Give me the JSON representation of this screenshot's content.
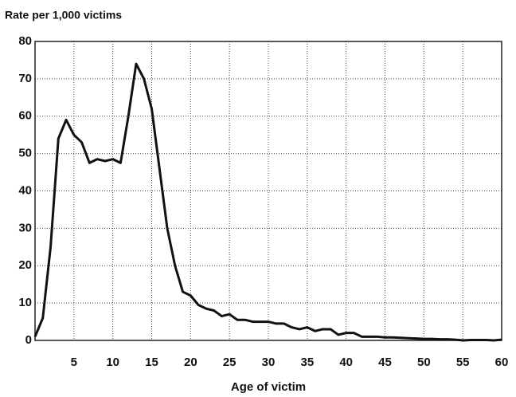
{
  "chart_data": {
    "type": "line",
    "y_label": "Rate per 1,000 victims",
    "x_label": "Age of victim",
    "x": [
      0,
      1,
      2,
      3,
      4,
      5,
      6,
      7,
      8,
      9,
      10,
      11,
      12,
      13,
      14,
      15,
      16,
      17,
      18,
      19,
      20,
      21,
      22,
      23,
      24,
      25,
      26,
      27,
      28,
      29,
      30,
      31,
      32,
      33,
      34,
      35,
      36,
      37,
      38,
      39,
      40,
      41,
      42,
      43,
      44,
      45,
      46,
      47,
      48,
      49,
      50,
      51,
      52,
      53,
      54,
      55,
      56,
      57,
      58,
      59,
      60
    ],
    "series": [
      {
        "name": "Rate",
        "color": "#111111",
        "values": [
          1,
          6,
          25,
          54,
          59,
          55,
          53,
          47.5,
          48.5,
          48,
          48.5,
          47.5,
          60,
          74,
          70,
          62,
          46,
          30,
          20,
          13,
          12,
          9.5,
          8.5,
          8,
          6.5,
          7,
          5.5,
          5.5,
          5,
          5,
          5,
          4.5,
          4.5,
          3.5,
          3,
          3.5,
          2.5,
          3,
          3,
          1.5,
          2,
          2,
          1,
          1,
          1,
          0.8,
          0.8,
          0.7,
          0.6,
          0.5,
          0.4,
          0.4,
          0.3,
          0.3,
          0.2,
          0,
          0.1,
          0.1,
          0.1,
          0,
          0.2
        ]
      }
    ],
    "xlim": [
      0,
      60
    ],
    "xticks": [
      5,
      10,
      15,
      20,
      25,
      30,
      35,
      40,
      45,
      50,
      55,
      60
    ],
    "ylim": [
      0,
      80
    ],
    "yticks": [
      0,
      10,
      20,
      30,
      40,
      50,
      60,
      70,
      80
    ],
    "grid": true
  }
}
